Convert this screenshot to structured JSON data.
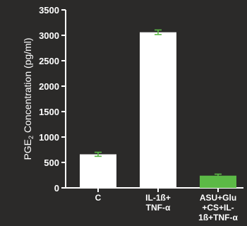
{
  "chart_data": {
    "type": "bar",
    "ylabel": "PGE",
    "ylabel_sub": "2",
    "ylabel_rest": " Concentration (pg/ml)",
    "ylim": [
      0,
      3500
    ],
    "yticks": [
      0,
      500,
      1000,
      1500,
      2000,
      2500,
      3000,
      3500
    ],
    "ytick_labels": [
      "0",
      "500",
      "1000",
      "1500",
      "2000",
      "2500",
      "3000",
      "3500"
    ],
    "grid": false,
    "categories": [
      [
        "C"
      ],
      [
        "IL-1ß+",
        "TNF-α"
      ],
      [
        "ASU+Glu",
        "+CS+IL-",
        "1ß+TNF-α"
      ]
    ],
    "values": [
      660,
      3060,
      240
    ],
    "errors": [
      40,
      45,
      30
    ],
    "colors": {
      "background": "#2b2a29",
      "axis": "#ffffff",
      "bars": [
        "#ffffff",
        "#ffffff",
        "#5cb946"
      ],
      "error_bars": "#5cb946"
    }
  }
}
